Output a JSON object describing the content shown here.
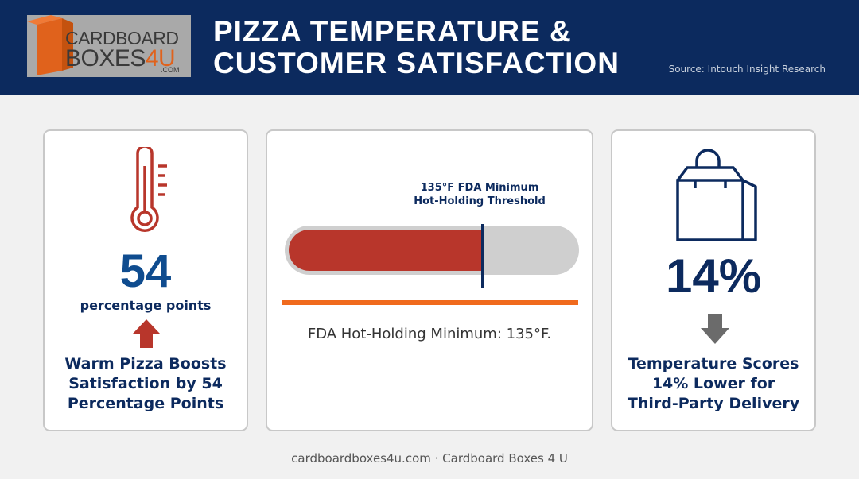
{
  "logo": {
    "line1": "CARDBOARD",
    "line2_main": "BOXES",
    "line2_accent": "4U",
    "line3": ".COM"
  },
  "header": {
    "title_line1": "PIZZA TEMPERATURE &",
    "title_line2": "CUSTOMER SATISFACTION",
    "source": "Source: Intouch Insight Research"
  },
  "left_card": {
    "icon": "thermometer-icon",
    "number": "54",
    "unit": "percentage points",
    "arrow_icon": "arrow-up-icon",
    "caption_lines": [
      "Warm Pizza Boosts",
      "Satisfaction by 54",
      "Percentage Points"
    ]
  },
  "middle_card": {
    "marker_label_line1": "135°F FDA Minimum",
    "marker_label_line2": "Hot-Holding Threshold",
    "marker_level": 0.67,
    "caption": "FDA Hot-Holding Minimum: 135°F."
  },
  "right_card": {
    "icon": "shopping-bag-icon",
    "number": "14%",
    "arrow_icon": "arrow-down-icon",
    "caption_lines": [
      "Temperature Scores",
      "14% Lower for",
      "Third-Party Delivery"
    ]
  },
  "footer": "cardboardboxes4u.com · Cardboard Boxes 4 U",
  "colors": {
    "navy": "#0c2a5e",
    "red": "#b8362b",
    "orange": "#f06a1d",
    "gray": "#6b6b6b"
  }
}
